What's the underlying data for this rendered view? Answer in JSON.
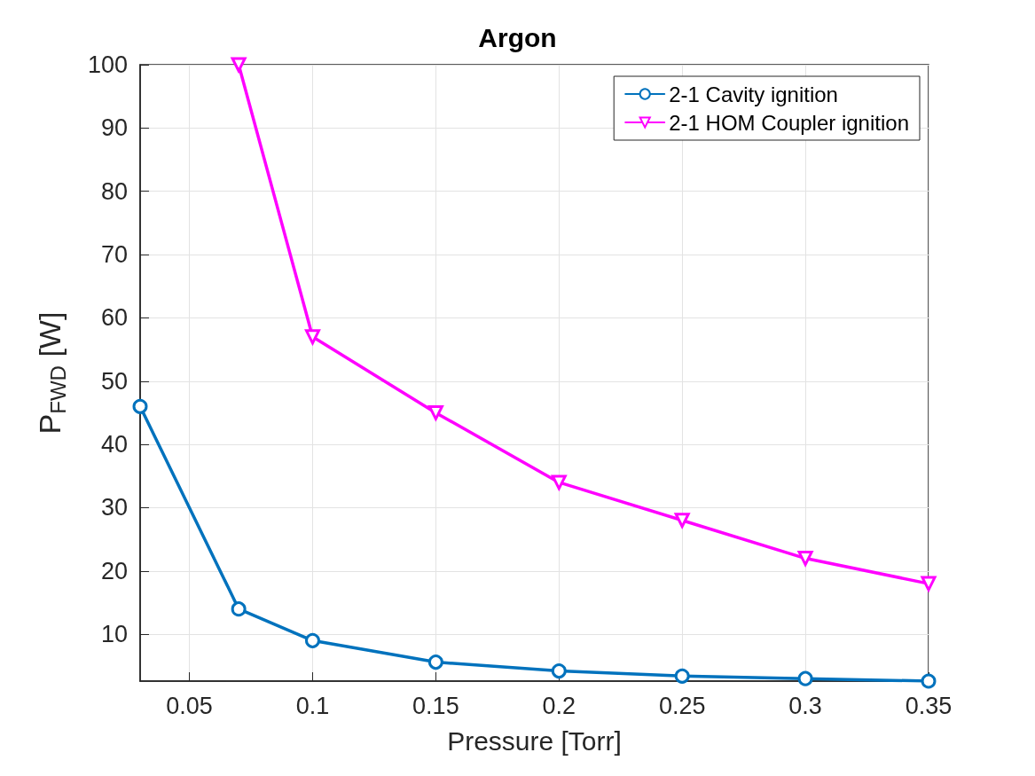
{
  "chart_data": {
    "type": "line",
    "title": "Argon",
    "xlabel": "Pressure [Torr]",
    "ylabel": "P$_{FWD}$ [W]",
    "x": [
      0.03,
      0.07,
      0.1,
      0.15,
      0.2,
      0.25,
      0.3,
      0.35
    ],
    "series": [
      {
        "name": "2-1 Cavity ignition",
        "color": "#0072bd",
        "marker": "circle",
        "values": [
          46,
          14,
          9,
          5.6,
          4.2,
          3.4,
          3.0,
          2.6
        ]
      },
      {
        "name": "2-1 HOM Coupler ignition",
        "color": "#ff00ff",
        "marker": "triangle",
        "values": [
          null,
          100,
          57,
          45,
          34,
          28,
          22,
          18
        ]
      }
    ],
    "xlim": [
      0.03,
      0.35
    ],
    "xticks": [
      0.05,
      0.1,
      0.15,
      0.2,
      0.25,
      0.3,
      0.35
    ],
    "ylim": [
      2.6,
      100
    ],
    "yticks": [
      10,
      20,
      30,
      40,
      50,
      60,
      70,
      80,
      90,
      100
    ],
    "grid": true,
    "legend": "top right",
    "line_style": "solid"
  }
}
